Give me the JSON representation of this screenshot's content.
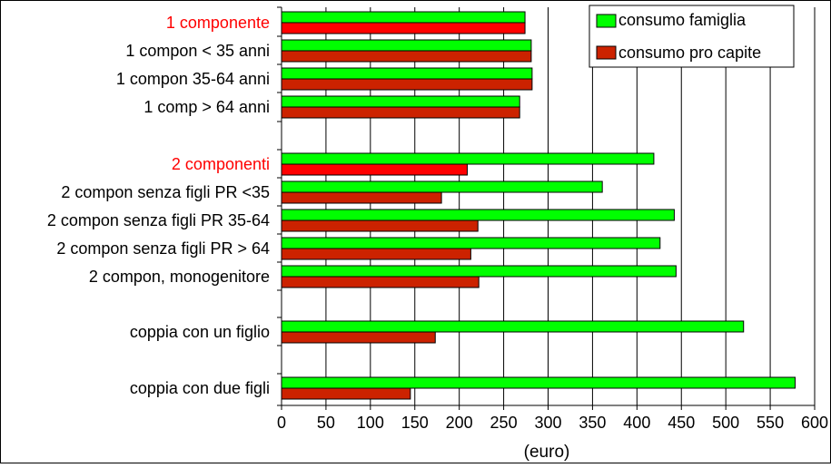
{
  "chart_data": {
    "type": "bar",
    "orientation": "horizontal",
    "title": "",
    "xlabel": "(euro)",
    "ylabel": "",
    "xlim": [
      0,
      600
    ],
    "x_ticks": [
      "0",
      "50",
      "100",
      "150",
      "200",
      "250",
      "300",
      "350",
      "400",
      "450",
      "500",
      "550",
      "600"
    ],
    "grid": "vertical",
    "legend_position": "top-right",
    "categories": [
      "1 componente",
      "1 compon < 35 anni",
      "1 compon 35-64 anni",
      "1 comp > 64 anni",
      "2 componenti",
      "2 compon senza figli PR <35",
      "2 compon senza figli PR 35-64",
      "2 compon senza figli PR > 64",
      "2 compon, monogenitore",
      "coppia con un figlio",
      "coppia con due figli"
    ],
    "highlighted_categories": [
      "1 componente",
      "2 componenti"
    ],
    "highlight_color": "#ff0000",
    "series": [
      {
        "name": "consumo famiglia",
        "color": "#00ff00",
        "values": [
          274,
          281,
          282,
          268,
          419,
          361,
          442,
          426,
          444,
          520,
          578
        ]
      },
      {
        "name": "consumo pro capite",
        "alt_color": "#ff0000",
        "color": "#cc2200",
        "values": [
          274,
          281,
          282,
          268,
          209,
          180,
          221,
          213,
          222,
          173,
          145
        ]
      }
    ]
  }
}
